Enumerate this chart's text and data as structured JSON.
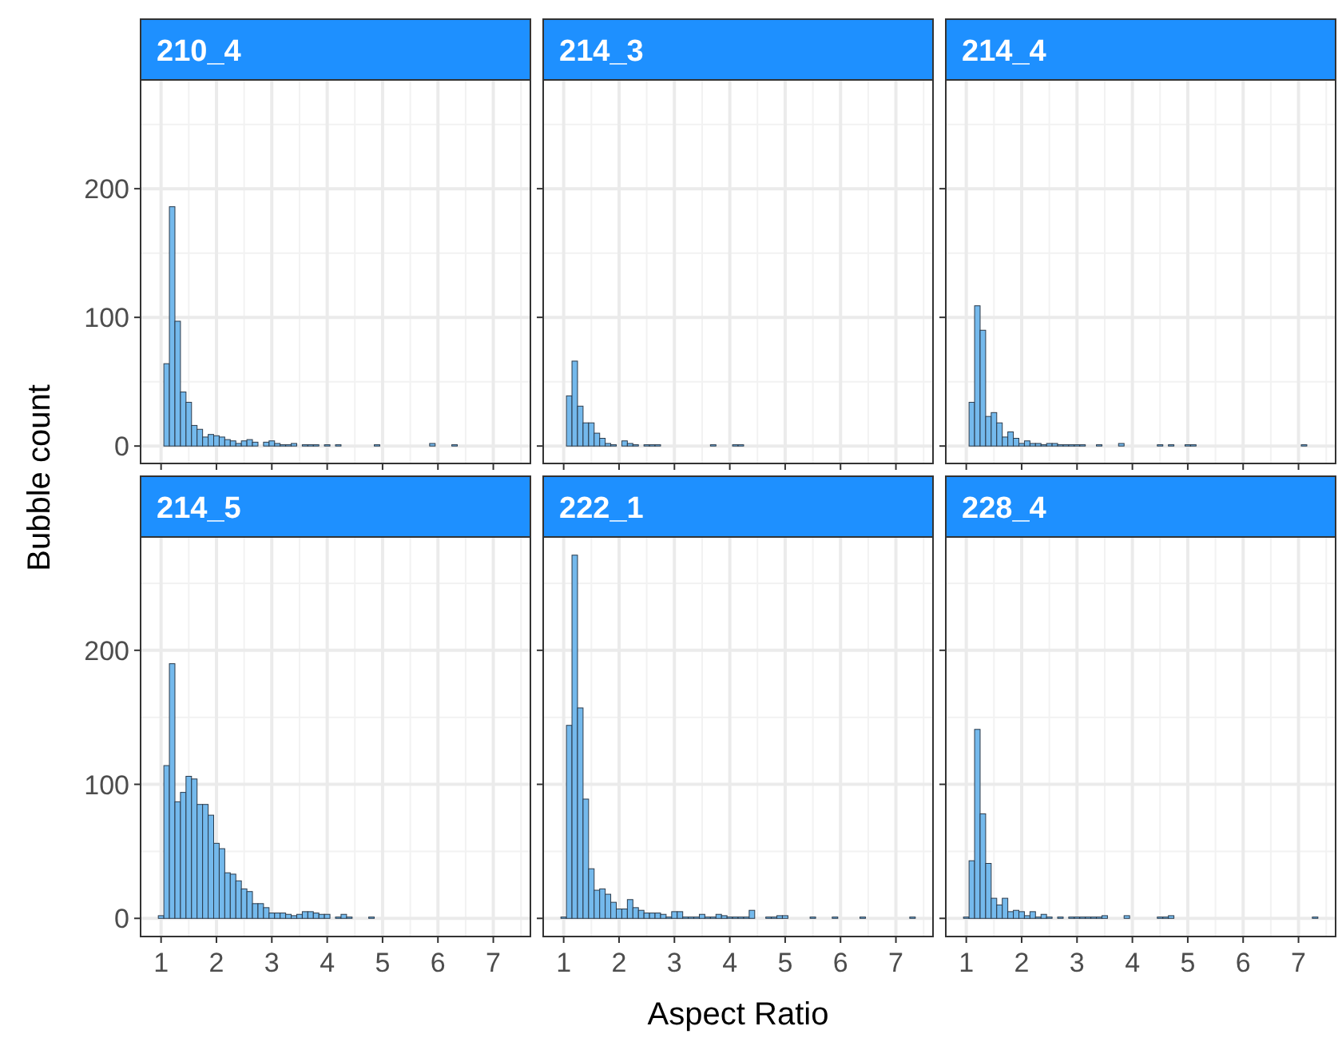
{
  "chart_data": [
    {
      "type": "histogram",
      "title": "210_4",
      "ylabel": "Bubble count",
      "color": "#74b9ec",
      "bins": [
        0.95,
        1.05,
        1.15,
        1.25,
        1.35,
        1.45,
        1.55,
        1.65,
        1.75,
        1.85,
        1.95,
        2.05,
        2.15,
        2.25,
        2.35,
        2.45,
        2.55,
        2.65,
        2.75,
        2.85,
        2.95,
        3.05,
        3.15,
        3.25,
        3.35,
        3.45,
        3.55,
        3.65,
        3.75,
        3.85,
        3.95,
        4.05,
        4.15,
        4.25,
        4.35,
        4.45,
        4.55,
        4.65,
        4.75,
        4.85,
        4.95,
        5.05,
        5.15,
        5.25,
        5.35,
        5.45,
        5.55,
        5.65,
        5.75,
        5.85,
        5.95,
        6.05,
        6.15,
        6.25,
        6.35,
        6.45,
        6.55,
        6.65,
        6.75,
        6.85,
        6.95,
        7.05,
        7.15,
        7.25,
        7.35
      ],
      "values": [
        0,
        64,
        186,
        97,
        42,
        34,
        16,
        13,
        7,
        9,
        8,
        7,
        5,
        4,
        2,
        4,
        5,
        3,
        0,
        3,
        4,
        2,
        1,
        1,
        2,
        0,
        1,
        1,
        1,
        0,
        1,
        0,
        1,
        0,
        0,
        0,
        0,
        0,
        0,
        1,
        0,
        0,
        0,
        0,
        0,
        0,
        0,
        0,
        0,
        2,
        0,
        0,
        0,
        1,
        0,
        0,
        0,
        0,
        0,
        0,
        0,
        0,
        0,
        0
      ],
      "xlim": [
        0.63,
        7.67
      ],
      "xticks": [
        1,
        2,
        3,
        4,
        5,
        6,
        7
      ],
      "ylim": [
        -13.55,
        284.55
      ],
      "yticks": [
        0,
        100,
        200
      ],
      "grid": true,
      "tick_labels": "y"
    },
    {
      "type": "histogram",
      "title": "214_3",
      "color": "#74b9ec",
      "bins": [
        0.95,
        1.05,
        1.15,
        1.25,
        1.35,
        1.45,
        1.55,
        1.65,
        1.75,
        1.85,
        1.95,
        2.05,
        2.15,
        2.25,
        2.35,
        2.45,
        2.55,
        2.65,
        2.75,
        2.85,
        2.95,
        3.05,
        3.15,
        3.25,
        3.35,
        3.45,
        3.55,
        3.65,
        3.75,
        3.85,
        3.95,
        4.05,
        4.15,
        4.25,
        4.35,
        4.45,
        4.55,
        4.65,
        4.75,
        4.85,
        4.95,
        5.05,
        5.15,
        5.25,
        5.35,
        5.45,
        5.55,
        5.65,
        5.75,
        5.85,
        5.95,
        6.05,
        6.15,
        6.25,
        6.35,
        6.45,
        6.55,
        6.65,
        6.75,
        6.85,
        6.95,
        7.05,
        7.15,
        7.25,
        7.35
      ],
      "values": [
        0,
        39,
        66,
        31,
        18,
        18,
        10,
        6,
        2,
        1,
        0,
        4,
        2,
        1,
        0,
        1,
        1,
        1,
        0,
        0,
        0,
        0,
        0,
        0,
        0,
        0,
        0,
        1,
        0,
        0,
        0,
        1,
        1,
        0,
        0,
        0,
        0,
        0,
        0,
        0,
        0,
        0,
        0,
        0,
        0,
        0,
        0,
        0,
        0,
        0,
        0,
        0,
        0,
        0,
        0,
        0,
        0,
        0,
        0,
        0,
        0,
        0,
        0,
        0
      ],
      "xlim": [
        0.63,
        7.67
      ],
      "xticks": [
        1,
        2,
        3,
        4,
        5,
        6,
        7
      ],
      "ylim": [
        -13.55,
        284.55
      ],
      "yticks": [
        0,
        100,
        200
      ],
      "grid": true,
      "tick_labels": false
    },
    {
      "type": "histogram",
      "title": "214_4",
      "color": "#74b9ec",
      "bins": [
        0.95,
        1.05,
        1.15,
        1.25,
        1.35,
        1.45,
        1.55,
        1.65,
        1.75,
        1.85,
        1.95,
        2.05,
        2.15,
        2.25,
        2.35,
        2.45,
        2.55,
        2.65,
        2.75,
        2.85,
        2.95,
        3.05,
        3.15,
        3.25,
        3.35,
        3.45,
        3.55,
        3.65,
        3.75,
        3.85,
        3.95,
        4.05,
        4.15,
        4.25,
        4.35,
        4.45,
        4.55,
        4.65,
        4.75,
        4.85,
        4.95,
        5.05,
        5.15,
        5.25,
        5.35,
        5.45,
        5.55,
        5.65,
        5.75,
        5.85,
        5.95,
        6.05,
        6.15,
        6.25,
        6.35,
        6.45,
        6.55,
        6.65,
        6.75,
        6.85,
        6.95,
        7.05,
        7.15,
        7.25,
        7.35
      ],
      "values": [
        0,
        34,
        109,
        90,
        23,
        26,
        18,
        7,
        11,
        6,
        2,
        4,
        2,
        2,
        1,
        2,
        2,
        1,
        1,
        1,
        1,
        1,
        0,
        0,
        1,
        0,
        0,
        0,
        2,
        0,
        0,
        0,
        0,
        0,
        0,
        1,
        0,
        1,
        0,
        0,
        1,
        1,
        0,
        0,
        0,
        0,
        0,
        0,
        0,
        0,
        0,
        0,
        0,
        0,
        0,
        0,
        0,
        0,
        0,
        0,
        0,
        1,
        0,
        0
      ],
      "xlim": [
        0.63,
        7.67
      ],
      "xticks": [
        1,
        2,
        3,
        4,
        5,
        6,
        7
      ],
      "ylim": [
        -13.55,
        284.55
      ],
      "yticks": [
        0,
        100,
        200
      ],
      "grid": true,
      "tick_labels": false
    },
    {
      "type": "histogram",
      "title": "214_5",
      "color": "#74b9ec",
      "bins": [
        0.95,
        1.05,
        1.15,
        1.25,
        1.35,
        1.45,
        1.55,
        1.65,
        1.75,
        1.85,
        1.95,
        2.05,
        2.15,
        2.25,
        2.35,
        2.45,
        2.55,
        2.65,
        2.75,
        2.85,
        2.95,
        3.05,
        3.15,
        3.25,
        3.35,
        3.45,
        3.55,
        3.65,
        3.75,
        3.85,
        3.95,
        4.05,
        4.15,
        4.25,
        4.35,
        4.45,
        4.55,
        4.65,
        4.75,
        4.85,
        4.95,
        5.05,
        5.15,
        5.25,
        5.35,
        5.45,
        5.55,
        5.65,
        5.75,
        5.85,
        5.95,
        6.05,
        6.15,
        6.25,
        6.35,
        6.45,
        6.55,
        6.65,
        6.75,
        6.85,
        6.95,
        7.05,
        7.15,
        7.25,
        7.35
      ],
      "values": [
        2,
        114,
        190,
        87,
        94,
        106,
        104,
        85,
        85,
        77,
        56,
        52,
        34,
        33,
        28,
        22,
        20,
        11,
        11,
        8,
        4,
        4,
        4,
        3,
        2,
        3,
        5,
        5,
        4,
        3,
        3,
        0,
        1,
        3,
        1,
        0,
        0,
        0,
        1,
        0,
        0,
        0,
        0,
        0,
        0,
        0,
        0,
        0,
        0,
        0,
        0,
        0,
        0,
        0,
        0,
        0,
        0,
        0,
        0,
        0,
        0,
        0,
        0,
        0
      ],
      "xlim": [
        0.63,
        7.67
      ],
      "xticks": [
        1,
        2,
        3,
        4,
        5,
        6,
        7
      ],
      "ylim": [
        -13.55,
        284.55
      ],
      "yticks": [
        0,
        100,
        200
      ],
      "grid": true
    },
    {
      "type": "histogram",
      "title": "222_1",
      "xlabel": "Aspect Ratio",
      "color": "#74b9ec",
      "bins": [
        0.95,
        1.05,
        1.15,
        1.25,
        1.35,
        1.45,
        1.55,
        1.65,
        1.75,
        1.85,
        1.95,
        2.05,
        2.15,
        2.25,
        2.35,
        2.45,
        2.55,
        2.65,
        2.75,
        2.85,
        2.95,
        3.05,
        3.15,
        3.25,
        3.35,
        3.45,
        3.55,
        3.65,
        3.75,
        3.85,
        3.95,
        4.05,
        4.15,
        4.25,
        4.35,
        4.45,
        4.55,
        4.65,
        4.75,
        4.85,
        4.95,
        5.05,
        5.15,
        5.25,
        5.35,
        5.45,
        5.55,
        5.65,
        5.75,
        5.85,
        5.95,
        6.05,
        6.15,
        6.25,
        6.35,
        6.45,
        6.55,
        6.65,
        6.75,
        6.85,
        6.95,
        7.05,
        7.15,
        7.25,
        7.35
      ],
      "values": [
        1,
        144,
        271,
        157,
        89,
        37,
        21,
        22,
        18,
        12,
        7,
        7,
        14,
        8,
        6,
        4,
        4,
        4,
        3,
        1,
        5,
        5,
        1,
        1,
        1,
        3,
        1,
        1,
        3,
        2,
        1,
        1,
        1,
        1,
        6,
        0,
        0,
        1,
        1,
        2,
        2,
        0,
        0,
        0,
        0,
        1,
        0,
        0,
        0,
        1,
        0,
        0,
        0,
        0,
        1,
        0,
        0,
        0,
        0,
        0,
        0,
        0,
        0,
        1
      ],
      "xlim": [
        0.63,
        7.67
      ],
      "xticks": [
        1,
        2,
        3,
        4,
        5,
        6,
        7
      ],
      "ylim": [
        -13.55,
        284.55
      ],
      "yticks": [
        0,
        100,
        200
      ],
      "grid": true,
      "tick_labels": "x"
    },
    {
      "type": "histogram",
      "title": "228_4",
      "color": "#74b9ec",
      "bins": [
        0.95,
        1.05,
        1.15,
        1.25,
        1.35,
        1.45,
        1.55,
        1.65,
        1.75,
        1.85,
        1.95,
        2.05,
        2.15,
        2.25,
        2.35,
        2.45,
        2.55,
        2.65,
        2.75,
        2.85,
        2.95,
        3.05,
        3.15,
        3.25,
        3.35,
        3.45,
        3.55,
        3.65,
        3.75,
        3.85,
        3.95,
        4.05,
        4.15,
        4.25,
        4.35,
        4.45,
        4.55,
        4.65,
        4.75,
        4.85,
        4.95,
        5.05,
        5.15,
        5.25,
        5.35,
        5.45,
        5.55,
        5.65,
        5.75,
        5.85,
        5.95,
        6.05,
        6.15,
        6.25,
        6.35,
        6.45,
        6.55,
        6.65,
        6.75,
        6.85,
        6.95,
        7.05,
        7.15,
        7.25,
        7.35
      ],
      "values": [
        1,
        43,
        141,
        78,
        41,
        15,
        10,
        15,
        5,
        6,
        5,
        2,
        5,
        1,
        3,
        1,
        0,
        1,
        0,
        1,
        1,
        1,
        1,
        1,
        1,
        2,
        0,
        0,
        0,
        2,
        0,
        0,
        0,
        0,
        0,
        1,
        1,
        2,
        0,
        0,
        0,
        0,
        0,
        0,
        0,
        0,
        0,
        0,
        0,
        0,
        0,
        0,
        0,
        0,
        0,
        0,
        0,
        0,
        0,
        0,
        0,
        0,
        0,
        1
      ],
      "xlim": [
        0.63,
        7.67
      ],
      "xticks": [
        1,
        2,
        3,
        4,
        5,
        6,
        7
      ],
      "ylim": [
        -13.55,
        284.55
      ],
      "yticks": [
        0,
        100,
        200
      ],
      "grid": true,
      "tick_labels": "x"
    }
  ]
}
